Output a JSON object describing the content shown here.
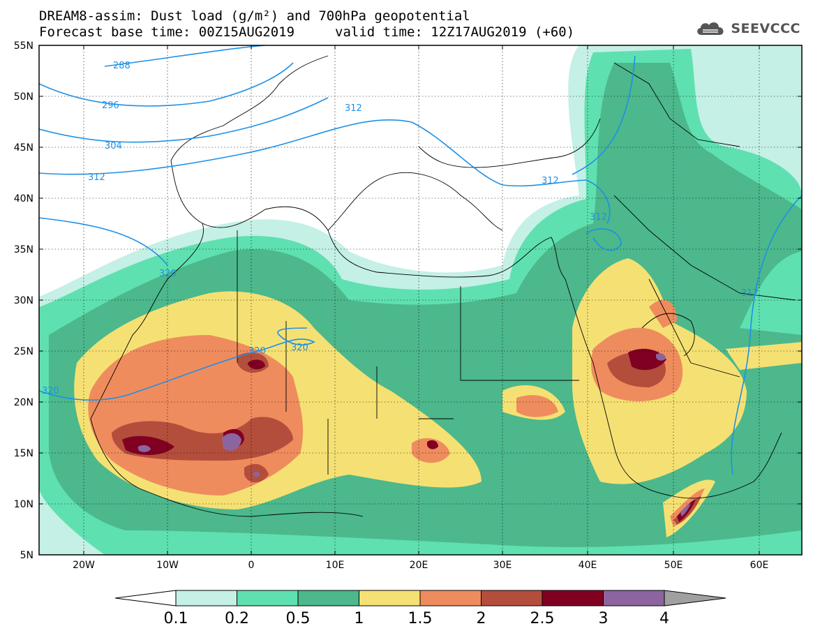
{
  "header": {
    "title_line1": "DREAM8-assim: Dust load (g/m²) and 700hPa geopotential",
    "title_line2_left": "Forecast base time: 00Z15AUG2019",
    "title_line2_right": "valid time: 12Z17AUG2019 (+60)"
  },
  "logo": {
    "text": "SEEVCCC",
    "icon": "cloud-icon",
    "color": "#555555"
  },
  "map": {
    "lon_range": [
      -25,
      65
    ],
    "lat_range": [
      5,
      55
    ],
    "lat_ticks": [
      "55N",
      "50N",
      "45N",
      "40N",
      "35N",
      "30N",
      "25N",
      "20N",
      "15N",
      "10N",
      "5N"
    ],
    "lon_ticks": [
      "20W",
      "10W",
      "0",
      "10E",
      "20E",
      "30E",
      "40E",
      "50E",
      "60E"
    ],
    "contour_color": "#1e90e6",
    "contour_labels": [
      "288",
      "296",
      "304",
      "312",
      "312",
      "312",
      "312",
      "312",
      "320",
      "320",
      "320",
      "320"
    ]
  },
  "colorbar": {
    "labels": [
      "0.1",
      "0.2",
      "0.5",
      "1",
      "1.5",
      "2",
      "2.5",
      "3",
      "4"
    ],
    "colors": [
      "#c4f0e6",
      "#5fe0b0",
      "#4cb88c",
      "#f5e173",
      "#ef8c5e",
      "#b44e3c",
      "#800021",
      "#8c64a0"
    ],
    "under_color": "#ffffff",
    "over_color": "#a0a0a0"
  }
}
